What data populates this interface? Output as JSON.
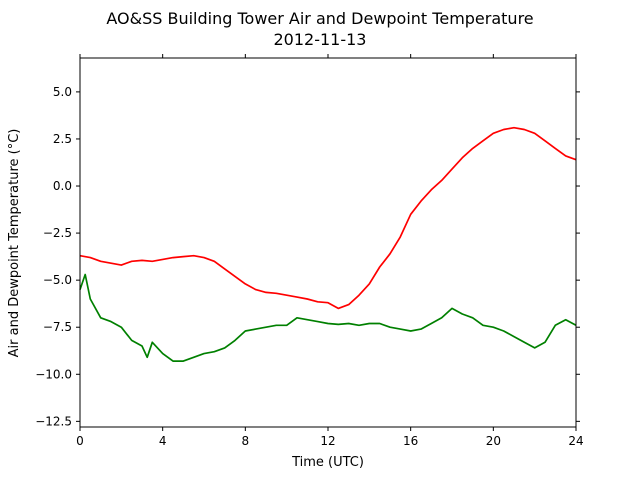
{
  "chart_data": {
    "type": "line",
    "title": "AO&SS Building Tower Air and Dewpoint Temperature",
    "subtitle": "2012-11-13",
    "xlabel": "Time (UTC)",
    "ylabel": "Air and Dewpoint Temperature (°C)",
    "xlim": [
      0,
      24
    ],
    "ylim": [
      -12.8,
      6.8
    ],
    "xticks": [
      0,
      4,
      8,
      12,
      16,
      20,
      24
    ],
    "xtick_labels": [
      "0",
      "4",
      "8",
      "12",
      "16",
      "20",
      "24"
    ],
    "yticks": [
      5.0,
      2.5,
      0.0,
      -2.5,
      -5.0,
      -7.5,
      -10.0,
      -12.5
    ],
    "ytick_labels": [
      "5.0",
      "2.5",
      "0.0",
      "−2.5",
      "−5.0",
      "−7.5",
      "−10.0",
      "−12.5"
    ],
    "grid": false,
    "legend": false,
    "series": [
      {
        "color": "#ff0000",
        "x": [
          0,
          0.5,
          1.0,
          1.5,
          2.0,
          2.5,
          3.0,
          3.5,
          4.0,
          4.5,
          5.0,
          5.5,
          6.0,
          6.5,
          7.0,
          7.5,
          8.0,
          8.5,
          9.0,
          9.5,
          10.0,
          10.5,
          11.0,
          11.5,
          12.0,
          12.5,
          13.0,
          13.5,
          14.0,
          14.5,
          15.0,
          15.5,
          16.0,
          16.5,
          17.0,
          17.5,
          18.0,
          18.5,
          19.0,
          19.5,
          20.0,
          20.5,
          21.0,
          21.5,
          22.0,
          22.5,
          23.0,
          23.5,
          24.0
        ],
        "values": [
          -3.7,
          -3.8,
          -4.0,
          -4.1,
          -4.2,
          -4.0,
          -3.95,
          -4.0,
          -3.9,
          -3.8,
          -3.75,
          -3.7,
          -3.8,
          -4.0,
          -4.4,
          -4.8,
          -5.2,
          -5.5,
          -5.65,
          -5.7,
          -5.8,
          -5.9,
          -6.0,
          -6.15,
          -6.2,
          -6.5,
          -6.3,
          -5.8,
          -5.2,
          -4.3,
          -3.6,
          -2.7,
          -1.5,
          -0.8,
          -0.2,
          0.3,
          0.9,
          1.5,
          2.0,
          2.4,
          2.8,
          3.0,
          3.1,
          3.0,
          2.8,
          2.4,
          2.0,
          1.6,
          1.4
        ]
      },
      {
        "color": "#008000",
        "x": [
          0,
          0.25,
          0.5,
          1.0,
          1.5,
          2.0,
          2.5,
          3.0,
          3.25,
          3.5,
          4.0,
          4.5,
          5.0,
          5.5,
          6.0,
          6.5,
          7.0,
          7.5,
          8.0,
          8.5,
          9.0,
          9.5,
          10.0,
          10.5,
          11.0,
          11.5,
          12.0,
          12.5,
          13.0,
          13.5,
          14.0,
          14.5,
          15.0,
          15.5,
          16.0,
          16.5,
          17.0,
          17.5,
          18.0,
          18.5,
          19.0,
          19.5,
          20.0,
          20.5,
          21.0,
          21.5,
          22.0,
          22.5,
          23.0,
          23.5,
          24.0
        ],
        "values": [
          -5.5,
          -4.7,
          -6.0,
          -7.0,
          -7.2,
          -7.5,
          -8.2,
          -8.5,
          -9.1,
          -8.3,
          -8.9,
          -9.3,
          -9.3,
          -9.1,
          -8.9,
          -8.8,
          -8.6,
          -8.2,
          -7.7,
          -7.6,
          -7.5,
          -7.4,
          -7.4,
          -7.0,
          -7.1,
          -7.2,
          -7.3,
          -7.35,
          -7.3,
          -7.4,
          -7.3,
          -7.3,
          -7.5,
          -7.6,
          -7.7,
          -7.6,
          -7.3,
          -7.0,
          -6.5,
          -6.8,
          -7.0,
          -7.4,
          -7.5,
          -7.7,
          -8.0,
          -8.3,
          -8.6,
          -8.3,
          -7.4,
          -7.1,
          -7.4
        ]
      }
    ]
  }
}
